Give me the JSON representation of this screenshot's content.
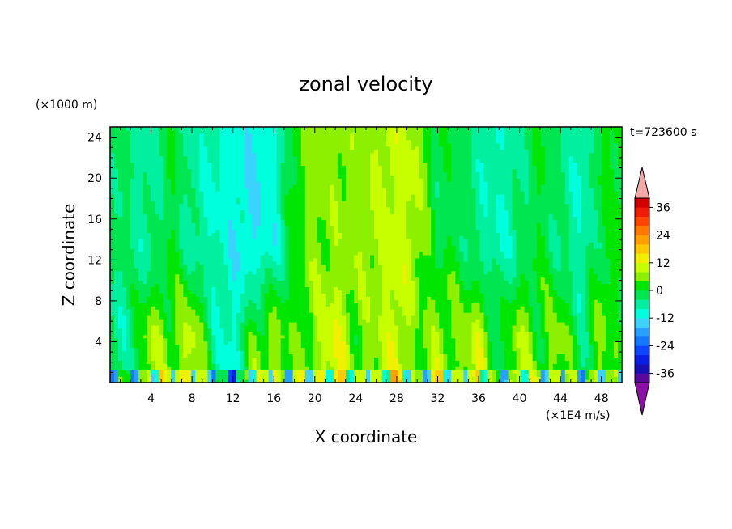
{
  "chart_data": {
    "type": "heatmap",
    "title": "zonal velocity",
    "xlabel": "X coordinate",
    "ylabel": "Z coordinate",
    "x_unit_label": "(×1E4 m/s)",
    "y_unit_label": "(×1000 m)",
    "time_label": "t=723600 s",
    "xlim": [
      0,
      50
    ],
    "ylim": [
      0,
      25
    ],
    "x_ticks": [
      4,
      8,
      12,
      16,
      20,
      24,
      28,
      32,
      36,
      40,
      44,
      48
    ],
    "y_ticks": [
      4,
      8,
      12,
      16,
      20,
      24
    ],
    "colorbar": {
      "levels": [
        -40,
        -36,
        -32,
        -28,
        -24,
        -20,
        -16,
        -12,
        -8,
        -4,
        0,
        4,
        8,
        12,
        16,
        20,
        24,
        28,
        32,
        36,
        40
      ],
      "tick_labels": [
        "36",
        "24",
        "12",
        "0",
        "-12",
        "-24",
        "-36"
      ],
      "tick_values": [
        36,
        24,
        12,
        0,
        -12,
        -24,
        -36
      ],
      "colors": [
        "#5a0a9b",
        "#1b0fb4",
        "#0a1ee6",
        "#0a46ff",
        "#1478ff",
        "#28a0ff",
        "#3cd2ff",
        "#00ffdc",
        "#00f0a0",
        "#00e650",
        "#00e600",
        "#8cf000",
        "#c8ff00",
        "#f0f000",
        "#ffc800",
        "#ffa000",
        "#ff7800",
        "#ff4600",
        "#f01e00",
        "#d20000"
      ],
      "under_color": "#8c10a8",
      "over_color": "#f4a8a8"
    },
    "field": {
      "description_levels": "values estimated per column x (0-50) as profile by height",
      "x": [
        0,
        2,
        4,
        6,
        8,
        10,
        12,
        14,
        16,
        18,
        20,
        22,
        24,
        26,
        28,
        30,
        32,
        34,
        36,
        38,
        40,
        42,
        44,
        46,
        48,
        50
      ],
      "upper_value": [
        -2,
        -4,
        -6,
        0,
        -6,
        -8,
        -10,
        -12,
        -10,
        2,
        6,
        6,
        6,
        8,
        10,
        8,
        -2,
        0,
        -6,
        -8,
        -4,
        0,
        -4,
        -8,
        0,
        2
      ],
      "lower_value": [
        -6,
        -4,
        8,
        4,
        10,
        -4,
        -10,
        4,
        6,
        2,
        6,
        12,
        4,
        6,
        12,
        2,
        8,
        4,
        10,
        -2,
        8,
        2,
        6,
        -4,
        6,
        -2
      ]
    }
  }
}
